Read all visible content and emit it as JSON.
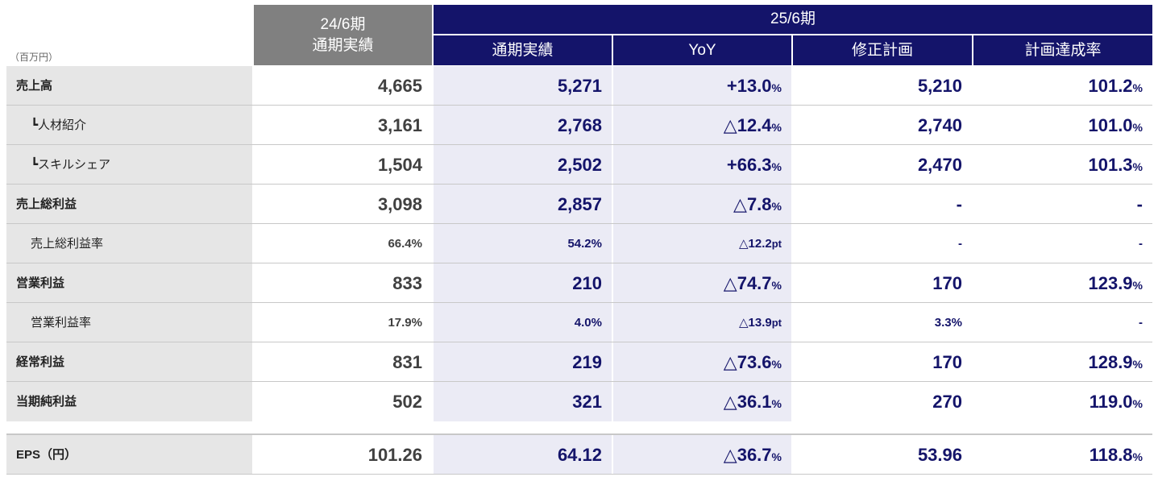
{
  "unit": "（百万円）",
  "header": {
    "prev": {
      "line1": "24/6期",
      "line2": "通期実績"
    },
    "cur": {
      "title": "25/6期",
      "cols": [
        "通期実績",
        "YoY",
        "修正計画",
        "計画達成率"
      ]
    }
  },
  "rows": [
    {
      "label": "売上高",
      "prev": "4,665",
      "actual": "5,271",
      "yoy": "+13.0",
      "yoy_suffix": "%",
      "plan": "5,210",
      "rate": "101.2",
      "rate_suffix": "%"
    },
    {
      "label": "┗人材紹介",
      "prev": "3,161",
      "actual": "2,768",
      "yoy": "△12.4",
      "yoy_suffix": "%",
      "plan": "2,740",
      "rate": "101.0",
      "rate_suffix": "%"
    },
    {
      "label": "┗スキルシェア",
      "prev": "1,504",
      "actual": "2,502",
      "yoy": "+66.3",
      "yoy_suffix": "%",
      "plan": "2,470",
      "rate": "101.3",
      "rate_suffix": "%"
    },
    {
      "label": "売上総利益",
      "prev": "3,098",
      "actual": "2,857",
      "yoy": "△7.8",
      "yoy_suffix": "%",
      "plan": "-",
      "rate": "-",
      "rate_suffix": ""
    },
    {
      "label": "売上総利益率",
      "prev": "66.4%",
      "actual": "54.2%",
      "yoy": "△12.2",
      "yoy_suffix": "pt",
      "plan": "-",
      "rate": "-",
      "rate_suffix": ""
    },
    {
      "label": "営業利益",
      "prev": "833",
      "actual": "210",
      "yoy": "△74.7",
      "yoy_suffix": "%",
      "plan": "170",
      "rate": "123.9",
      "rate_suffix": "%"
    },
    {
      "label": "営業利益率",
      "prev": "17.9%",
      "actual": "4.0%",
      "yoy": "△13.9",
      "yoy_suffix": "pt",
      "plan": "3.3%",
      "rate": "-",
      "rate_suffix": ""
    },
    {
      "label": "経常利益",
      "prev": "831",
      "actual": "219",
      "yoy": "△73.6",
      "yoy_suffix": "%",
      "plan": "170",
      "rate": "128.9",
      "rate_suffix": "%"
    },
    {
      "label": "当期純利益",
      "prev": "502",
      "actual": "321",
      "yoy": "△36.1",
      "yoy_suffix": "%",
      "plan": "270",
      "rate": "119.0",
      "rate_suffix": "%"
    },
    {
      "label": "EPS（円）",
      "prev": "101.26",
      "actual": "64.12",
      "yoy": "△36.7",
      "yoy_suffix": "%",
      "plan": "53.96",
      "rate": "118.8",
      "rate_suffix": "%"
    }
  ]
}
